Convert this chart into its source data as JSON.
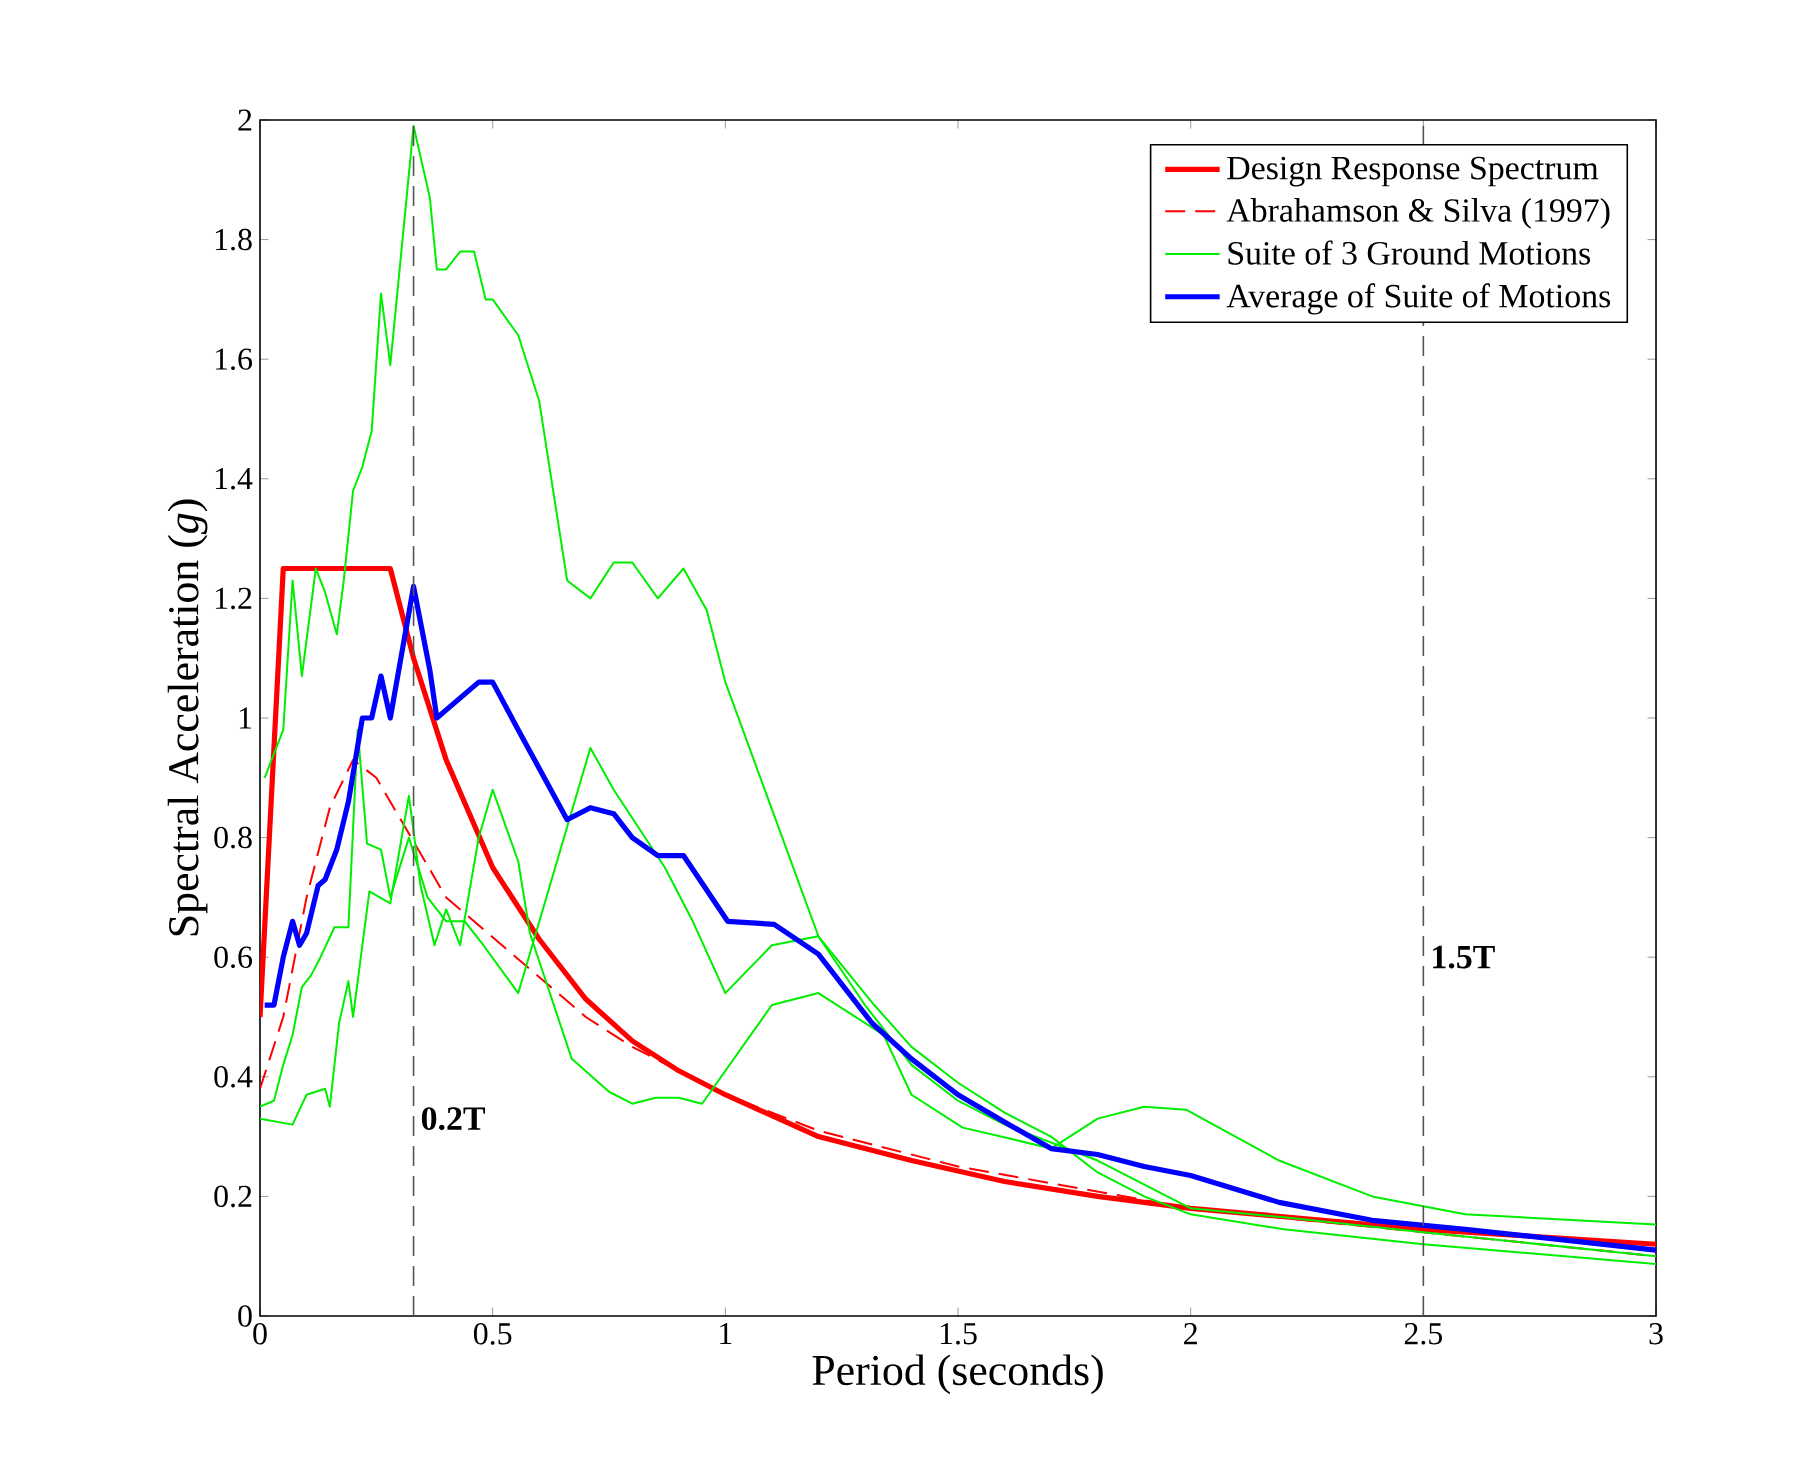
{
  "chart_data": {
    "type": "line",
    "xlabel": "Period (seconds)",
    "ylabel": "Spectral Acceleration (*g*)",
    "xlim": [
      0,
      3
    ],
    "ylim": [
      0,
      2
    ],
    "xticks": [
      0,
      0.5,
      1,
      1.5,
      2,
      2.5,
      3
    ],
    "yticks": [
      0,
      0.2,
      0.4,
      0.6,
      0.8,
      1,
      1.2,
      1.4,
      1.6,
      1.8,
      2
    ],
    "legend": "top right",
    "grid": false,
    "marker": "none",
    "ref_lines": [
      {
        "axis": "x",
        "value": 0.33,
        "label": "0.2T",
        "color": "#555555",
        "line_style": "dashed"
      },
      {
        "axis": "x",
        "value": 2.5,
        "label": "1.5T",
        "color": "#555555",
        "line_style": "dashed"
      }
    ],
    "series": [
      {
        "name": "Design Response Spectrum",
        "color": "#ff0000",
        "line_style": "solid",
        "x": [
          0,
          0.05,
          0.28,
          0.33,
          0.4,
          0.5,
          0.6,
          0.7,
          0.8,
          0.9,
          1.0,
          1.2,
          1.4,
          1.6,
          1.8,
          2.0,
          2.5,
          3.0
        ],
        "values": [
          0.5,
          1.25,
          1.25,
          1.1,
          0.93,
          0.75,
          0.63,
          0.53,
          0.46,
          0.41,
          0.37,
          0.3,
          0.26,
          0.225,
          0.2,
          0.18,
          0.145,
          0.12
        ]
      },
      {
        "name": "Abrahamson & Silva (1997)",
        "color": "#ff0000",
        "line_style": "dashed",
        "x": [
          0,
          0.05,
          0.1,
          0.15,
          0.2,
          0.25,
          0.4,
          0.55,
          0.7,
          0.8,
          1.0,
          1.2,
          1.5,
          2.0,
          2.5,
          3.0
        ],
        "values": [
          0.38,
          0.5,
          0.7,
          0.85,
          0.93,
          0.9,
          0.7,
          0.6,
          0.5,
          0.45,
          0.37,
          0.31,
          0.25,
          0.18,
          0.14,
          0.1
        ]
      },
      {
        "name": "Suite of 3 Ground Motions",
        "color": "#00ee00",
        "line_style": "solid",
        "x": [
          0.01,
          0.05,
          0.07,
          0.09,
          0.12,
          0.14,
          0.165,
          0.18,
          0.2,
          0.22,
          0.24,
          0.26,
          0.28,
          0.33,
          0.365,
          0.38,
          0.4,
          0.43,
          0.46,
          0.485,
          0.5,
          0.555,
          0.6,
          0.66,
          0.71,
          0.76,
          0.8,
          0.855,
          0.91,
          0.96,
          1.0,
          1.2,
          1.3,
          1.4,
          1.5,
          1.6,
          1.8,
          2.0,
          2.2,
          2.5,
          3.0
        ],
        "values": [
          0.9,
          0.98,
          1.23,
          1.07,
          1.25,
          1.21,
          1.14,
          1.23,
          1.38,
          1.42,
          1.48,
          1.71,
          1.59,
          1.99,
          1.87,
          1.75,
          1.75,
          1.78,
          1.78,
          1.7,
          1.7,
          1.64,
          1.53,
          1.23,
          1.2,
          1.26,
          1.26,
          1.2,
          1.25,
          1.18,
          1.06,
          0.635,
          0.52,
          0.42,
          0.36,
          0.32,
          0.26,
          0.18,
          0.165,
          0.14,
          0.1
        ]
      },
      {
        "color": "#00ee00",
        "line_style": "solid",
        "x": [
          0,
          0.03,
          0.05,
          0.07,
          0.09,
          0.11,
          0.13,
          0.16,
          0.19,
          0.21,
          0.23,
          0.26,
          0.28,
          0.32,
          0.36,
          0.4,
          0.44,
          0.48,
          0.555,
          0.71,
          0.76,
          0.8,
          0.87,
          0.93,
          1.0,
          1.1,
          1.2,
          1.32,
          1.4,
          1.5,
          1.6,
          1.7,
          1.8,
          1.9,
          2.0,
          2.2,
          2.5,
          3.0
        ],
        "values": [
          0.35,
          0.36,
          0.42,
          0.47,
          0.55,
          0.57,
          0.6,
          0.65,
          0.65,
          0.98,
          0.79,
          0.78,
          0.7,
          0.8,
          0.7,
          0.66,
          0.66,
          0.62,
          0.54,
          0.95,
          0.88,
          null,
          0.75,
          0.66,
          0.54,
          0.62,
          0.635,
          0.52,
          0.45,
          0.39,
          0.34,
          0.3,
          0.24,
          0.2,
          0.17,
          0.145,
          0.12,
          0.087
        ]
      },
      {
        "color": "#00ee00",
        "line_style": "solid",
        "x": [
          0,
          0.07,
          0.1,
          0.14,
          0.15,
          0.17,
          0.19,
          0.2,
          0.235,
          0.28,
          0.32,
          0.345,
          0.375,
          0.4,
          0.43,
          0.47,
          0.5,
          0.555,
          0.58,
          0.67,
          0.75,
          0.8,
          0.85,
          0.9,
          0.95,
          1.1,
          1.2,
          1.34,
          1.4,
          1.51,
          1.62,
          1.7,
          1.8,
          1.9,
          1.99,
          2.19,
          2.39,
          2.59,
          3.0
        ],
        "values": [
          0.33,
          0.32,
          0.37,
          0.38,
          0.35,
          0.49,
          0.56,
          0.5,
          0.71,
          0.69,
          0.87,
          0.72,
          0.62,
          0.68,
          0.62,
          0.8,
          0.88,
          0.76,
          0.64,
          0.43,
          0.375,
          0.355,
          0.365,
          0.365,
          0.355,
          0.52,
          0.54,
          0.47,
          0.37,
          0.315,
          0.295,
          0.28,
          0.33,
          0.35,
          0.345,
          0.26,
          0.2,
          0.17,
          0.153
        ]
      },
      {
        "name": "Average of Suite of Motions",
        "color": "#0000ff",
        "line_style": "solid",
        "x": [
          0.01,
          0.03,
          0.05,
          0.07,
          0.085,
          0.1,
          0.125,
          0.14,
          0.165,
          0.19,
          0.22,
          0.24,
          0.26,
          0.28,
          0.33,
          0.365,
          0.38,
          0.44,
          0.47,
          0.5,
          0.555,
          0.66,
          0.71,
          0.76,
          0.8,
          0.855,
          0.91,
          1.005,
          1.105,
          1.2,
          1.315,
          1.4,
          1.5,
          1.61,
          1.7,
          1.8,
          1.9,
          2.0,
          2.19,
          2.39,
          2.59,
          3.0
        ],
        "values": [
          0.52,
          0.52,
          0.6,
          0.66,
          0.62,
          0.64,
          0.72,
          0.73,
          0.78,
          0.86,
          1.0,
          1.0,
          1.07,
          1.0,
          1.22,
          1.08,
          1.0,
          1.04,
          1.06,
          1.06,
          0.98,
          0.83,
          0.85,
          0.84,
          0.8,
          0.77,
          0.77,
          0.66,
          0.655,
          0.605,
          0.49,
          0.43,
          0.37,
          0.32,
          0.28,
          0.27,
          0.25,
          0.235,
          0.19,
          0.16,
          0.145,
          0.11
        ]
      }
    ]
  }
}
